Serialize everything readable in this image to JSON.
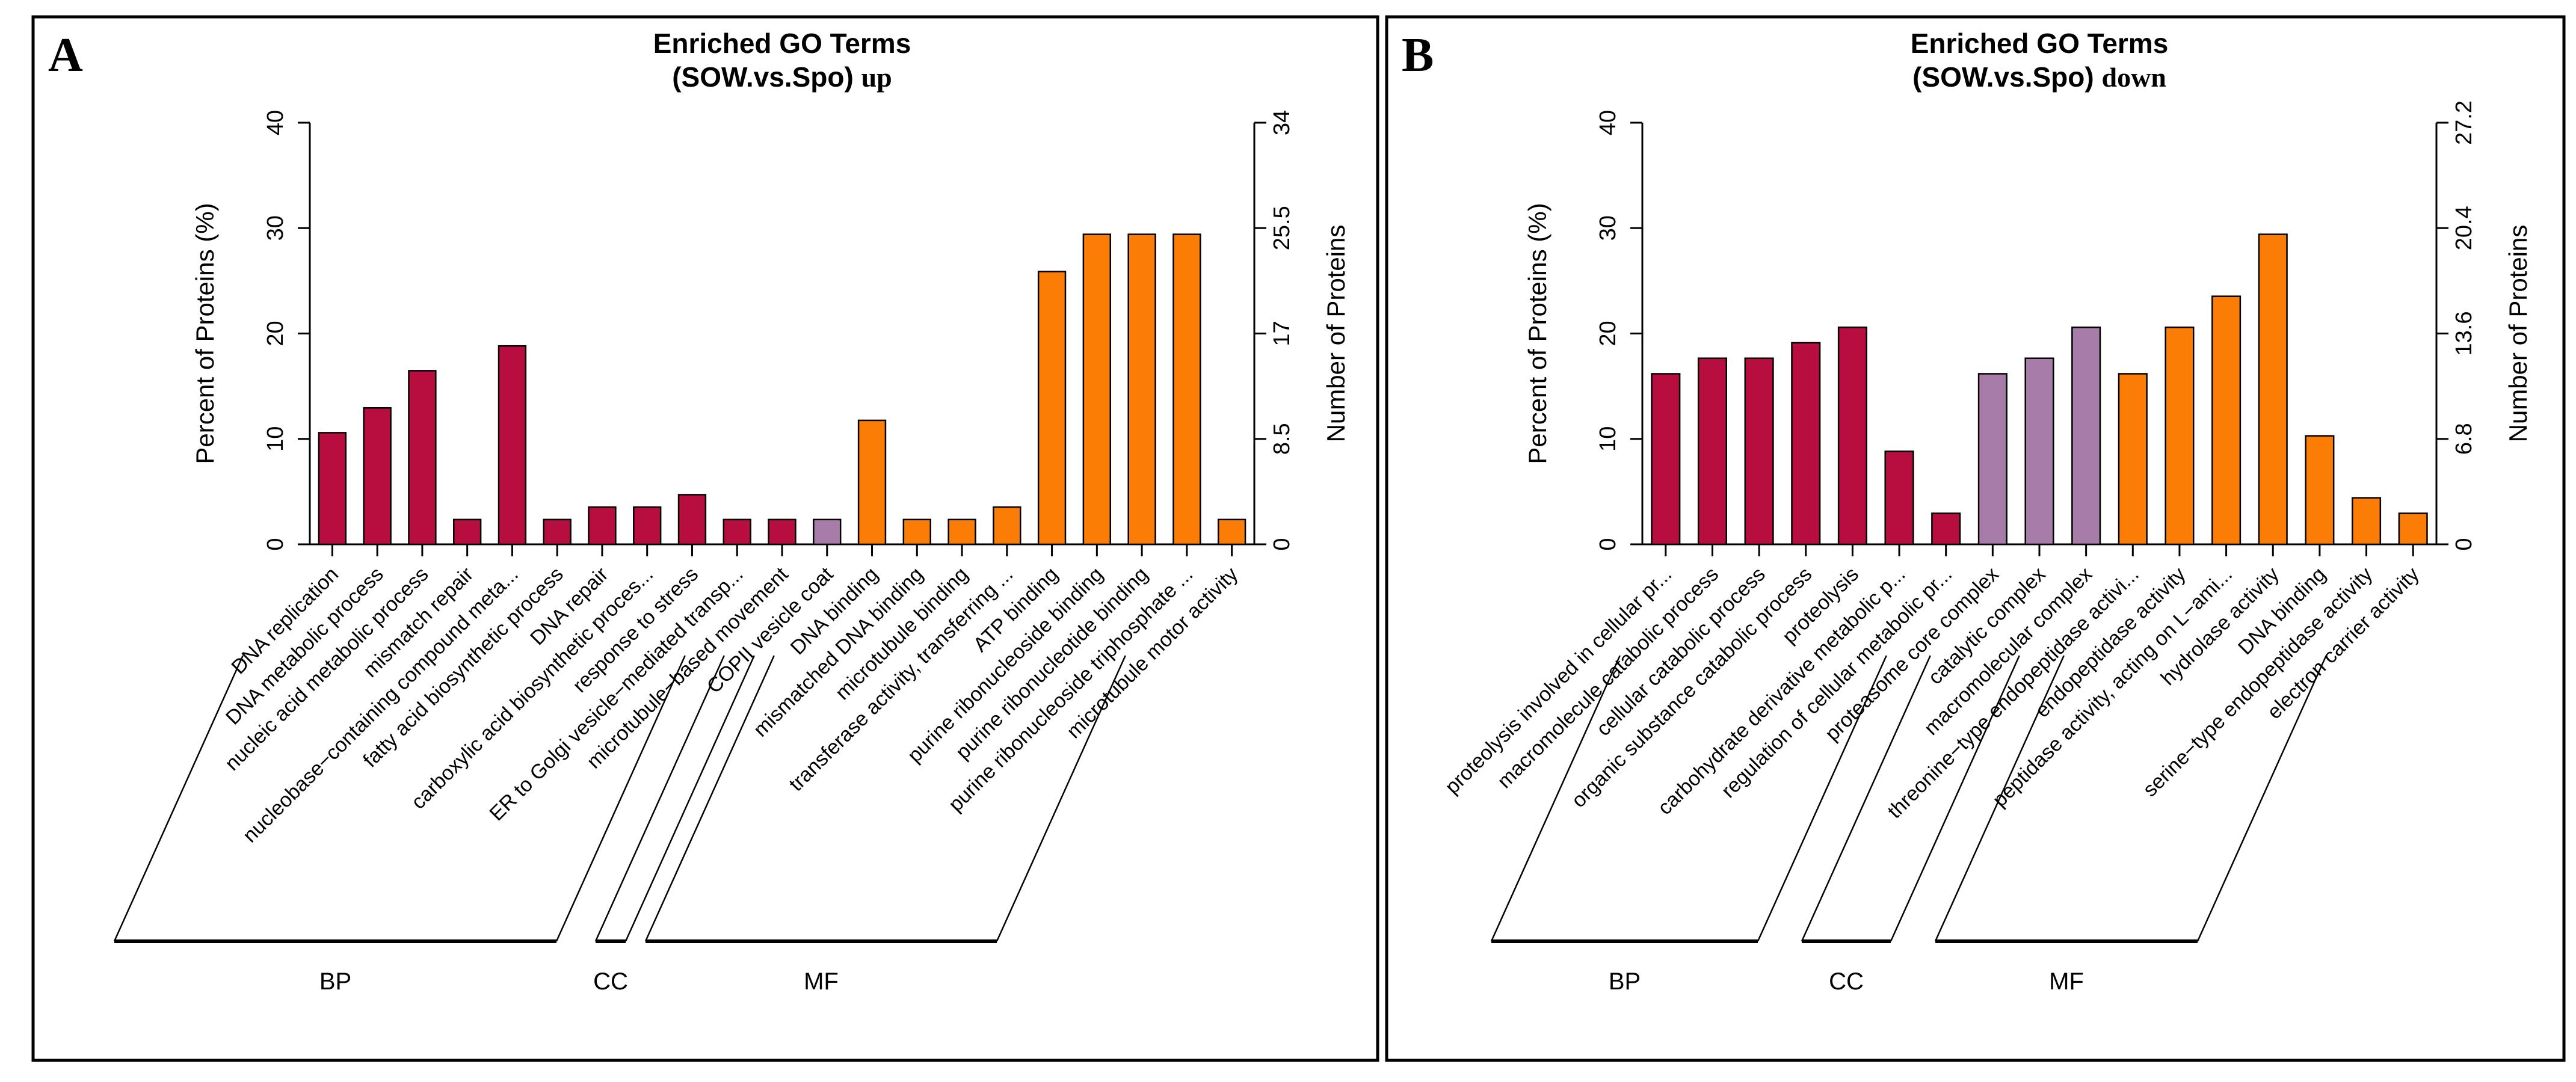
{
  "figure": {
    "background": "#ffffff",
    "frame_color": "#000000",
    "group_colors": {
      "BP": "#B80D3F",
      "CC": "#A87CA8",
      "MF": "#FB7D05"
    }
  },
  "chart_data": [
    {
      "panel_letter": "A",
      "type": "bar",
      "title_line1": "Enriched GO Terms",
      "title_line2": "(SOW.vs.Spo)",
      "title_suffix": "up",
      "left_axis": {
        "label": "Percent of Proteins (%)",
        "ticks": [
          "0",
          "10",
          "20",
          "30",
          "40"
        ],
        "range": [
          0,
          40
        ]
      },
      "right_axis": {
        "label": "Number of Proteins",
        "ticks": [
          "0",
          "8.5",
          "17",
          "25.5",
          "34"
        ],
        "range": [
          0,
          34
        ]
      },
      "legend_position": "none",
      "grid": false,
      "groups": [
        {
          "name": "BP",
          "color": "#B80D3F",
          "items": [
            {
              "label": "DNA replication",
              "percent": 10.59,
              "count": 9
            },
            {
              "label": "DNA metabolic process",
              "percent": 12.94,
              "count": 11
            },
            {
              "label": "nucleic acid metabolic process",
              "percent": 16.47,
              "count": 14
            },
            {
              "label": "mismatch repair",
              "percent": 2.35,
              "count": 2
            },
            {
              "label": "nucleobase−containing compound meta...",
              "percent": 18.82,
              "count": 16
            },
            {
              "label": "fatty acid biosynthetic process",
              "percent": 2.35,
              "count": 2
            },
            {
              "label": "DNA repair",
              "percent": 3.53,
              "count": 3
            },
            {
              "label": "carboxylic acid biosynthetic proces...",
              "percent": 3.53,
              "count": 3
            },
            {
              "label": "response to stress",
              "percent": 4.71,
              "count": 4
            },
            {
              "label": "ER to Golgi vesicle−mediated transp...",
              "percent": 2.35,
              "count": 2
            },
            {
              "label": "microtubule−based movement",
              "percent": 2.35,
              "count": 2
            }
          ]
        },
        {
          "name": "CC",
          "color": "#A87CA8",
          "items": [
            {
              "label": "COPII vesicle coat",
              "percent": 2.35,
              "count": 2
            }
          ]
        },
        {
          "name": "MF",
          "color": "#FB7D05",
          "items": [
            {
              "label": "DNA binding",
              "percent": 11.76,
              "count": 10
            },
            {
              "label": "mismatched DNA binding",
              "percent": 2.35,
              "count": 2
            },
            {
              "label": "microtubule binding",
              "percent": 2.35,
              "count": 2
            },
            {
              "label": "transferase activity, transferring ...",
              "percent": 3.53,
              "count": 3
            },
            {
              "label": "ATP binding",
              "percent": 25.88,
              "count": 22
            },
            {
              "label": "purine ribonucleoside binding",
              "percent": 29.41,
              "count": 25
            },
            {
              "label": "purine ribonucleotide binding",
              "percent": 29.41,
              "count": 25
            },
            {
              "label": "purine ribonucleoside triphosphate ...",
              "percent": 29.41,
              "count": 25
            },
            {
              "label": "microtubule motor activity",
              "percent": 2.35,
              "count": 2
            }
          ]
        }
      ]
    },
    {
      "panel_letter": "B",
      "type": "bar",
      "title_line1": "Enriched GO Terms",
      "title_line2": "(SOW.vs.Spo)",
      "title_suffix": "down",
      "left_axis": {
        "label": "Percent of Proteins (%)",
        "ticks": [
          "0",
          "10",
          "20",
          "30",
          "40"
        ],
        "range": [
          0,
          40
        ]
      },
      "right_axis": {
        "label": "Number of Proteins",
        "ticks": [
          "0",
          "6.8",
          "13.6",
          "20.4",
          "27.2"
        ],
        "range": [
          0,
          27.2
        ]
      },
      "legend_position": "none",
      "grid": false,
      "groups": [
        {
          "name": "BP",
          "color": "#B80D3F",
          "items": [
            {
              "label": "proteolysis involved in cellular pr...",
              "percent": 16.18,
              "count": 11
            },
            {
              "label": "macromolecule catabolic process",
              "percent": 17.65,
              "count": 12
            },
            {
              "label": "cellular catabolic process",
              "percent": 17.65,
              "count": 12
            },
            {
              "label": "organic substance catabolic process",
              "percent": 19.12,
              "count": 13
            },
            {
              "label": "proteolysis",
              "percent": 20.59,
              "count": 14
            },
            {
              "label": "carbohydrate derivative metabolic p...",
              "percent": 8.82,
              "count": 6
            },
            {
              "label": "regulation of cellular metabolic pr...",
              "percent": 2.94,
              "count": 2
            }
          ]
        },
        {
          "name": "CC",
          "color": "#A87CA8",
          "items": [
            {
              "label": "proteasome core complex",
              "percent": 16.18,
              "count": 11
            },
            {
              "label": "catalytic complex",
              "percent": 17.65,
              "count": 12
            },
            {
              "label": "macromolecular complex",
              "percent": 20.59,
              "count": 14
            }
          ]
        },
        {
          "name": "MF",
          "color": "#FB7D05",
          "items": [
            {
              "label": "threonine−type endopeptidase activi...",
              "percent": 16.18,
              "count": 11
            },
            {
              "label": "endopeptidase activity",
              "percent": 20.59,
              "count": 14
            },
            {
              "label": "peptidase activity, acting on L−ami...",
              "percent": 23.53,
              "count": 16
            },
            {
              "label": "hydrolase activity",
              "percent": 29.41,
              "count": 20
            },
            {
              "label": "DNA binding",
              "percent": 10.29,
              "count": 7
            },
            {
              "label": "serine−type endopeptidase activity",
              "percent": 4.41,
              "count": 3
            },
            {
              "label": "electron carrier activity",
              "percent": 2.94,
              "count": 2
            }
          ]
        }
      ]
    }
  ]
}
